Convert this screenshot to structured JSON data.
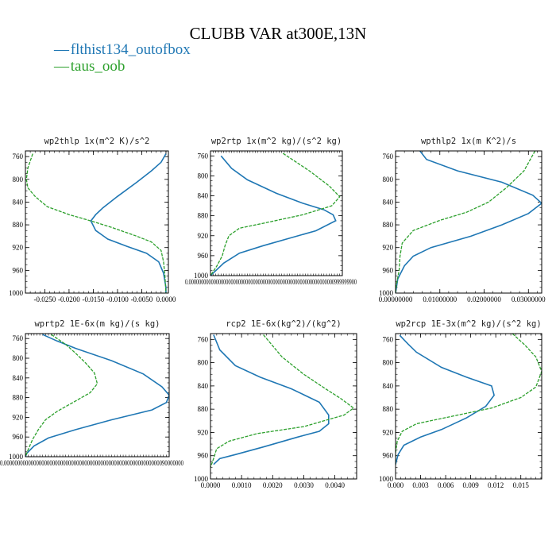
{
  "title": "CLUBB VAR at300E,13N",
  "legend": [
    {
      "label": "flthist134_outofbox",
      "color": "#1f77b4",
      "dash": "—"
    },
    {
      "label": "taus_oob",
      "color": "#2ca02c",
      "dash": "—"
    }
  ],
  "chart_data": [
    {
      "type": "line",
      "title": "wp2thlp  1x(m^2 K)/s^2",
      "ylim": [
        1000,
        750
      ],
      "yticks": [
        "760",
        "800",
        "840",
        "880",
        "920",
        "960",
        "1000"
      ],
      "xlim": [
        -0.029,
        0.0005
      ],
      "xtick_labels": [
        "-0.0250",
        "-0.0200",
        "-0.0150",
        "-0.0100",
        "-0.0050",
        "0.0000"
      ],
      "xtick_values": [
        -0.025,
        -0.02,
        -0.015,
        -0.01,
        -0.005,
        0.0
      ],
      "series": [
        {
          "name": "flthist134_outofbox",
          "color": "#1f77b4",
          "points": [
            [
              0.0,
              755
            ],
            [
              -0.001,
              770
            ],
            [
              -0.003,
              785
            ],
            [
              -0.006,
              805
            ],
            [
              -0.01,
              830
            ],
            [
              -0.013,
              850
            ],
            [
              -0.0145,
              862
            ],
            [
              -0.0155,
              873
            ],
            [
              -0.0145,
              890
            ],
            [
              -0.012,
              905
            ],
            [
              -0.008,
              918
            ],
            [
              -0.004,
              930
            ],
            [
              -0.0015,
              945
            ],
            [
              -0.0005,
              965
            ],
            [
              0.0,
              990
            ],
            [
              0.0,
              1000
            ]
          ]
        },
        {
          "name": "taus_oob",
          "color": "#2ca02c",
          "dashed": true,
          "points": [
            [
              -0.0275,
              755
            ],
            [
              -0.0285,
              780
            ],
            [
              -0.0288,
              800
            ],
            [
              -0.0285,
              815
            ],
            [
              -0.027,
              830
            ],
            [
              -0.0245,
              848
            ],
            [
              -0.02,
              862
            ],
            [
              -0.0155,
              873
            ],
            [
              -0.011,
              885
            ],
            [
              -0.006,
              900
            ],
            [
              -0.003,
              910
            ],
            [
              -0.001,
              925
            ],
            [
              -0.0005,
              945
            ],
            [
              -0.0002,
              970
            ],
            [
              0.0,
              1000
            ]
          ]
        }
      ]
    },
    {
      "type": "line",
      "title": "wp2rtp  1x(m^2 kg)/(s^2 kg)",
      "ylim": [
        1000,
        750
      ],
      "yticks": [
        "760",
        "800",
        "840",
        "880",
        "920",
        "960",
        "1000"
      ],
      "xlim": [
        0.0,
        1.0
      ],
      "xtick_labels": [
        "0.00000000000000000000000000000000000000000000000000000000000999999900"
      ],
      "xtick_values": [
        0.0
      ],
      "series": [
        {
          "name": "flthist134_outofbox",
          "color": "#1f77b4",
          "points": [
            [
              0.08,
              760
            ],
            [
              0.16,
              785
            ],
            [
              0.28,
              808
            ],
            [
              0.5,
              835
            ],
            [
              0.7,
              855
            ],
            [
              0.86,
              868
            ],
            [
              0.93,
              878
            ],
            [
              0.95,
              890
            ],
            [
              0.8,
              910
            ],
            [
              0.6,
              925
            ],
            [
              0.4,
              940
            ],
            [
              0.22,
              955
            ],
            [
              0.1,
              975
            ],
            [
              0.02,
              995
            ],
            [
              0.0,
              1000
            ]
          ]
        },
        {
          "name": "taus_oob",
          "color": "#2ca02c",
          "dashed": true,
          "points": [
            [
              0.55,
              755
            ],
            [
              0.75,
              790
            ],
            [
              0.9,
              820
            ],
            [
              0.98,
              842
            ],
            [
              0.92,
              860
            ],
            [
              0.7,
              878
            ],
            [
              0.4,
              895
            ],
            [
              0.22,
              905
            ],
            [
              0.14,
              920
            ],
            [
              0.11,
              940
            ],
            [
              0.09,
              960
            ],
            [
              0.05,
              980
            ],
            [
              0.0,
              1000
            ]
          ]
        }
      ]
    },
    {
      "type": "line",
      "title": "wpthlp2  1x(m K^2)/s",
      "ylim": [
        1000,
        750
      ],
      "yticks": [
        "760",
        "800",
        "840",
        "880",
        "920",
        "960",
        "1000"
      ],
      "xlim": [
        0.0,
        0.033
      ],
      "xtick_labels": [
        "0.00000000",
        "0.01000000",
        "0.02000000",
        "0.03000000"
      ],
      "xtick_values": [
        0.0,
        0.01,
        0.02,
        0.03
      ],
      "series": [
        {
          "name": "flthist134_outofbox",
          "color": "#1f77b4",
          "points": [
            [
              0.0055,
              750
            ],
            [
              0.007,
              765
            ],
            [
              0.014,
              785
            ],
            [
              0.024,
              805
            ],
            [
              0.031,
              828
            ],
            [
              0.033,
              842
            ],
            [
              0.03,
              860
            ],
            [
              0.024,
              880
            ],
            [
              0.017,
              900
            ],
            [
              0.008,
              920
            ],
            [
              0.004,
              935
            ],
            [
              0.002,
              952
            ],
            [
              0.0005,
              975
            ],
            [
              0.0,
              1000
            ]
          ]
        },
        {
          "name": "taus_oob",
          "color": "#2ca02c",
          "dashed": true,
          "points": [
            [
              0.0315,
              750
            ],
            [
              0.029,
              785
            ],
            [
              0.025,
              815
            ],
            [
              0.021,
              840
            ],
            [
              0.016,
              858
            ],
            [
              0.01,
              872
            ],
            [
              0.004,
              890
            ],
            [
              0.0015,
              912
            ],
            [
              0.001,
              935
            ],
            [
              0.0008,
              960
            ],
            [
              0.0002,
              985
            ],
            [
              0.0,
              1000
            ]
          ]
        }
      ]
    },
    {
      "type": "line",
      "title": "wprtp2  1E-6x(m kg)/(s kg)",
      "ylim": [
        1000,
        750
      ],
      "yticks": [
        "760",
        "800",
        "840",
        "880",
        "920",
        "960",
        "1000"
      ],
      "xlim": [
        0.0,
        1.0
      ],
      "xtick_labels": [
        "0.0000000000000000000000000000000000000000000000000000000000090000000"
      ],
      "xtick_values": [
        0.0
      ],
      "series": [
        {
          "name": "flthist134_outofbox",
          "color": "#1f77b4",
          "points": [
            [
              0.12,
              752
            ],
            [
              0.22,
              765
            ],
            [
              0.35,
              780
            ],
            [
              0.6,
              805
            ],
            [
              0.82,
              832
            ],
            [
              0.95,
              858
            ],
            [
              1.0,
              875
            ],
            [
              0.98,
              890
            ],
            [
              0.88,
              905
            ],
            [
              0.6,
              925
            ],
            [
              0.35,
              945
            ],
            [
              0.16,
              962
            ],
            [
              0.06,
              978
            ],
            [
              0.01,
              993
            ],
            [
              0.0,
              1000
            ]
          ]
        },
        {
          "name": "taus_oob",
          "color": "#2ca02c",
          "dashed": true,
          "points": [
            [
              0.18,
              752
            ],
            [
              0.28,
              772
            ],
            [
              0.35,
              790
            ],
            [
              0.42,
              810
            ],
            [
              0.48,
              830
            ],
            [
              0.5,
              852
            ],
            [
              0.45,
              870
            ],
            [
              0.33,
              890
            ],
            [
              0.22,
              908
            ],
            [
              0.14,
              925
            ],
            [
              0.09,
              945
            ],
            [
              0.05,
              965
            ],
            [
              0.02,
              985
            ],
            [
              0.0,
              1000
            ]
          ]
        }
      ]
    },
    {
      "type": "line",
      "title": "rcp2  1E-6x(kg^2)/(kg^2)",
      "ylim": [
        1000,
        750
      ],
      "yticks": [
        "760",
        "800",
        "840",
        "880",
        "920",
        "960",
        "1000"
      ],
      "xlim": [
        0.0,
        0.0047
      ],
      "xtick_labels": [
        "0.0000",
        "0.0010",
        "0.0020",
        "0.0030",
        "0.0040"
      ],
      "xtick_values": [
        0.0,
        0.001,
        0.002,
        0.003,
        0.004
      ],
      "series": [
        {
          "name": "flthist134_outofbox",
          "color": "#1f77b4",
          "points": [
            [
              0.0001,
              752
            ],
            [
              0.0003,
              778
            ],
            [
              0.0008,
              805
            ],
            [
              0.0016,
              825
            ],
            [
              0.0026,
              845
            ],
            [
              0.0035,
              868
            ],
            [
              0.0038,
              890
            ],
            [
              0.0038,
              905
            ],
            [
              0.0035,
              918
            ],
            [
              0.0028,
              928
            ],
            [
              0.0017,
              945
            ],
            [
              0.0008,
              958
            ],
            [
              0.0003,
              965
            ],
            [
              0.0001,
              975
            ]
          ]
        },
        {
          "name": "taus_oob",
          "color": "#2ca02c",
          "dashed": true,
          "points": [
            [
              0.0017,
              752
            ],
            [
              0.0023,
              790
            ],
            [
              0.003,
              820
            ],
            [
              0.0037,
              845
            ],
            [
              0.0042,
              862
            ],
            [
              0.0046,
              878
            ],
            [
              0.0043,
              890
            ],
            [
              0.003,
              910
            ],
            [
              0.0015,
              922
            ],
            [
              0.0006,
              935
            ],
            [
              0.0002,
              948
            ],
            [
              0.0001,
              965
            ],
            [
              0.0,
              980
            ]
          ]
        }
      ]
    },
    {
      "type": "line",
      "title": "wp2rcp  1E-3x(m^2 kg)/(s^2 kg)",
      "ylim": [
        1000,
        750
      ],
      "yticks": [
        "760",
        "800",
        "840",
        "880",
        "920",
        "960",
        "1000"
      ],
      "xlim": [
        0.0,
        0.0175
      ],
      "xtick_labels": [
        "0.000",
        "0.003",
        "0.006",
        "0.009",
        "0.012",
        "0.015"
      ],
      "xtick_values": [
        0.0,
        0.003,
        0.006,
        0.009,
        0.012,
        0.015
      ],
      "series": [
        {
          "name": "flthist134_outofbox",
          "color": "#1f77b4",
          "points": [
            [
              0.0005,
              753
            ],
            [
              0.0015,
              768
            ],
            [
              0.0025,
              782
            ],
            [
              0.0055,
              808
            ],
            [
              0.0085,
              825
            ],
            [
              0.0115,
              840
            ],
            [
              0.0118,
              856
            ],
            [
              0.0108,
              875
            ],
            [
              0.0085,
              895
            ],
            [
              0.0055,
              915
            ],
            [
              0.003,
              928
            ],
            [
              0.001,
              942
            ],
            [
              0.0003,
              958
            ],
            [
              0.0,
              975
            ]
          ]
        },
        {
          "name": "taus_oob",
          "color": "#2ca02c",
          "dashed": true,
          "points": [
            [
              0.014,
              750
            ],
            [
              0.0155,
              770
            ],
            [
              0.0168,
              790
            ],
            [
              0.0175,
              815
            ],
            [
              0.0168,
              842
            ],
            [
              0.015,
              860
            ],
            [
              0.0115,
              878
            ],
            [
              0.0065,
              893
            ],
            [
              0.0025,
              905
            ],
            [
              0.0008,
              918
            ],
            [
              0.0002,
              935
            ],
            [
              0.0,
              955
            ],
            [
              0.0,
              975
            ]
          ]
        }
      ]
    }
  ]
}
